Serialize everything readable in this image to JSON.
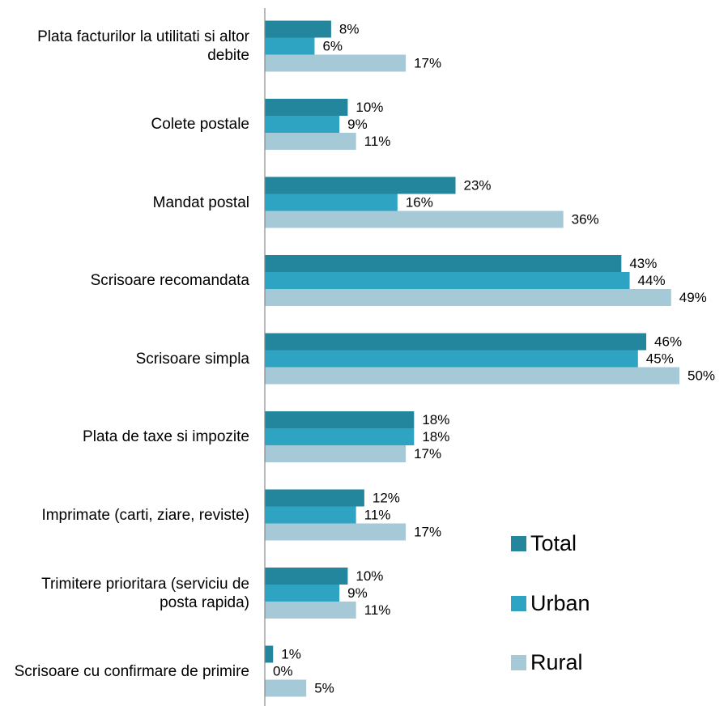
{
  "chart_data": {
    "type": "bar",
    "orientation": "horizontal",
    "categories": [
      "Plata facturilor la utilitati si altor debite",
      "Colete postale",
      "Mandat postal",
      "Scrisoare recomandata",
      "Scrisoare simpla",
      "Plata de taxe si impozite",
      "Imprimate (carti, ziare, reviste)",
      "Trimitere prioritara (serviciu de posta rapida)",
      "Scrisoare cu confirmare de primire"
    ],
    "series": [
      {
        "name": "Total",
        "color": "#23869d",
        "values": [
          8,
          10,
          23,
          43,
          46,
          18,
          12,
          10,
          1
        ],
        "value_labels": [
          "8%",
          "10%",
          "23%",
          "43%",
          "46%",
          "18%",
          "12%",
          "10%",
          "1%"
        ]
      },
      {
        "name": "Urban",
        "color": "#2ea3c2",
        "values": [
          6,
          9,
          16,
          44,
          45,
          18,
          11,
          9,
          0
        ],
        "value_labels": [
          "6%",
          "9%",
          "16%",
          "44%",
          "45%",
          "18%",
          "11%",
          "9%",
          "0%"
        ]
      },
      {
        "name": "Rural",
        "color": "#a6c9d7",
        "values": [
          17,
          11,
          36,
          49,
          50,
          17,
          17,
          11,
          5
        ],
        "value_labels": [
          "17%",
          "11%",
          "36%",
          "49%",
          "50%",
          "17%",
          "17%",
          "11%",
          "5%"
        ]
      }
    ],
    "legend": "right"
  }
}
